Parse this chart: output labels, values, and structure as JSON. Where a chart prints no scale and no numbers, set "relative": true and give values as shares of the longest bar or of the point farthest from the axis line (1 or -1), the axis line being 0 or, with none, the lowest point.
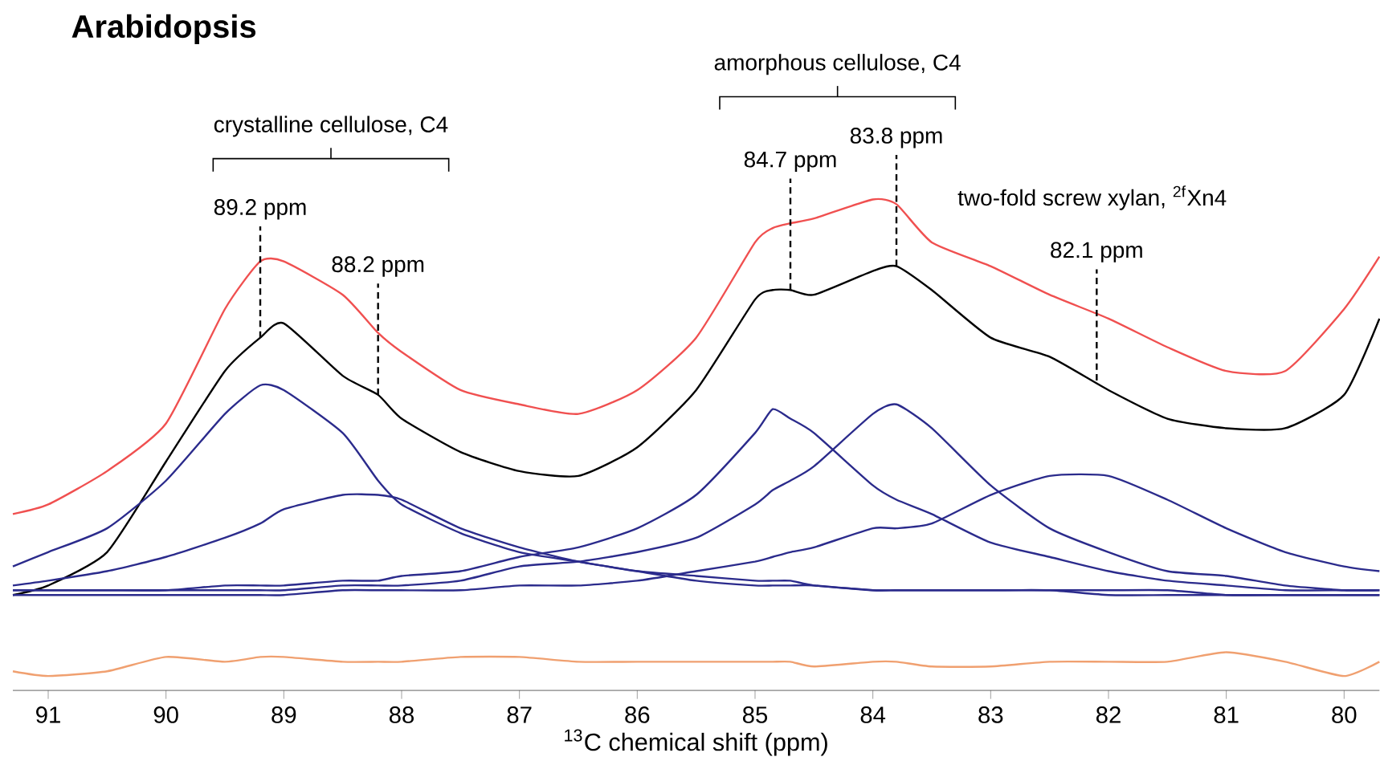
{
  "chart_data": {
    "type": "line",
    "title": "Arabidopsis",
    "xlabel": "$^{13}$C chemical shift (ppm)",
    "relative": true,
    "xlim": [
      91.3,
      79.7
    ],
    "xticks": [
      91,
      90,
      89,
      88,
      87,
      86,
      85,
      84,
      83,
      82,
      81,
      80
    ],
    "x": [
      91.3,
      91,
      90.5,
      90,
      89.5,
      89.2,
      89,
      88.5,
      88.2,
      88,
      87.5,
      87,
      86.5,
      86,
      85.5,
      85,
      84.85,
      84.7,
      84.5,
      84,
      83.8,
      83.5,
      83,
      82.5,
      82,
      81.5,
      81,
      80.5,
      80,
      79.7
    ],
    "series": [
      {
        "color": "#f05050",
        "values": [
          0.34,
          0.36,
          0.43,
          0.53,
          0.77,
          0.87,
          0.87,
          0.8,
          0.72,
          0.68,
          0.6,
          0.57,
          0.55,
          0.6,
          0.71,
          0.91,
          0.94,
          0.95,
          0.96,
          1.0,
          0.99,
          0.91,
          0.86,
          0.8,
          0.75,
          0.69,
          0.64,
          0.64,
          0.77,
          0.88
        ]
      },
      {
        "color": "#000000",
        "values": [
          0.17,
          0.19,
          0.26,
          0.45,
          0.64,
          0.71,
          0.74,
          0.63,
          0.59,
          0.54,
          0.47,
          0.43,
          0.42,
          0.48,
          0.6,
          0.79,
          0.81,
          0.81,
          0.8,
          0.85,
          0.86,
          0.81,
          0.71,
          0.67,
          0.6,
          0.54,
          0.52,
          0.52,
          0.59,
          0.75
        ]
      },
      {
        "color": "#2b2b8c",
        "values": [
          0.23,
          0.26,
          0.31,
          0.41,
          0.55,
          0.61,
          0.6,
          0.51,
          0.41,
          0.36,
          0.3,
          0.26,
          0.24,
          0.22,
          0.21,
          0.2,
          0.2,
          0.2,
          0.19,
          0.18,
          0.18,
          0.18,
          0.18,
          0.18,
          0.17,
          0.17,
          0.17,
          0.17,
          0.17,
          0.17
        ]
      },
      {
        "color": "#2b2b8c",
        "values": [
          0.19,
          0.2,
          0.22,
          0.25,
          0.29,
          0.32,
          0.35,
          0.38,
          0.38,
          0.37,
          0.31,
          0.27,
          0.24,
          0.22,
          0.2,
          0.19,
          0.19,
          0.19,
          0.19,
          0.18,
          0.18,
          0.18,
          0.18,
          0.18,
          0.18,
          0.18,
          0.17,
          0.17,
          0.17,
          0.17
        ]
      },
      {
        "color": "#2b2b8c",
        "values": [
          0.18,
          0.18,
          0.18,
          0.18,
          0.19,
          0.19,
          0.19,
          0.2,
          0.2,
          0.21,
          0.22,
          0.25,
          0.27,
          0.31,
          0.38,
          0.51,
          0.56,
          0.54,
          0.51,
          0.4,
          0.37,
          0.34,
          0.28,
          0.25,
          0.22,
          0.2,
          0.19,
          0.18,
          0.18,
          0.18
        ]
      },
      {
        "color": "#2b2b8c",
        "values": [
          0.18,
          0.18,
          0.18,
          0.18,
          0.18,
          0.18,
          0.18,
          0.19,
          0.19,
          0.19,
          0.2,
          0.23,
          0.24,
          0.26,
          0.29,
          0.36,
          0.39,
          0.41,
          0.44,
          0.55,
          0.57,
          0.52,
          0.4,
          0.31,
          0.26,
          0.22,
          0.21,
          0.19,
          0.18,
          0.18
        ]
      },
      {
        "color": "#2b2b8c",
        "values": [
          0.17,
          0.17,
          0.17,
          0.17,
          0.17,
          0.17,
          0.17,
          0.18,
          0.18,
          0.18,
          0.18,
          0.19,
          0.19,
          0.2,
          0.22,
          0.24,
          0.25,
          0.26,
          0.27,
          0.31,
          0.31,
          0.32,
          0.38,
          0.42,
          0.42,
          0.37,
          0.31,
          0.26,
          0.23,
          0.22
        ]
      },
      {
        "color": "#f0a070",
        "values": [
          0.01,
          0.0,
          0.01,
          0.04,
          0.03,
          0.04,
          0.04,
          0.03,
          0.03,
          0.03,
          0.04,
          0.04,
          0.03,
          0.03,
          0.03,
          0.03,
          0.03,
          0.03,
          0.02,
          0.03,
          0.03,
          0.02,
          0.02,
          0.03,
          0.03,
          0.03,
          0.05,
          0.03,
          0.0,
          0.03
        ]
      }
    ],
    "annotations": [
      {
        "text": "89.2 ppm",
        "x": 89.2,
        "y": 0.71
      },
      {
        "text": "88.2 ppm",
        "x": 88.2,
        "y": 0.59
      },
      {
        "text": "84.7 ppm",
        "x": 84.7,
        "y": 0.81
      },
      {
        "text": "83.8 ppm",
        "x": 83.8,
        "y": 0.86
      },
      {
        "text": "82.1 ppm",
        "x": 82.1,
        "y": 0.62
      },
      "crystalline cellulose, C4",
      "amorphous cellulose, C4",
      "two-fold screw xylan, $^{2f}$Xn4"
    ]
  }
}
